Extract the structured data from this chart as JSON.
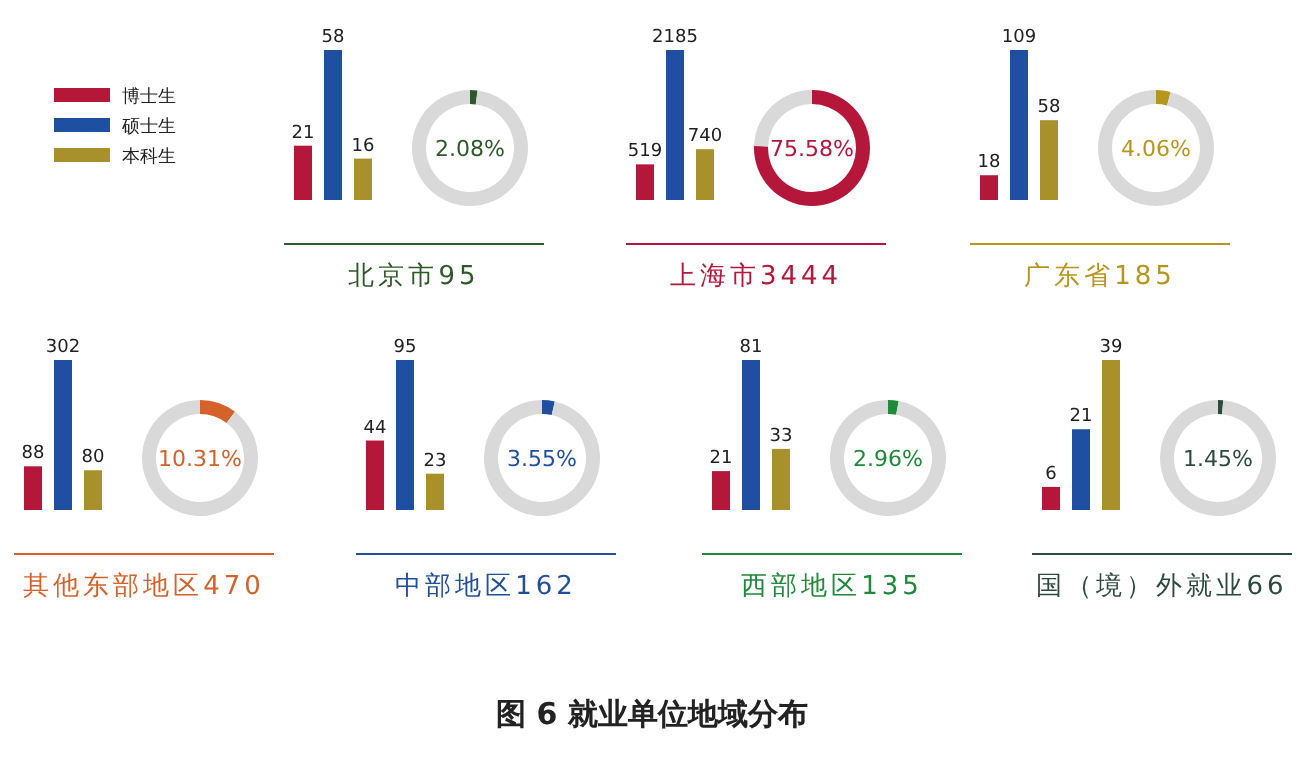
{
  "chart_data": [
    {
      "type": "other",
      "categories": [
        "博士生",
        "硕士生",
        "本科生"
      ],
      "colors": [
        "#b5173a",
        "#1f4fa0",
        "#a8902a"
      ]
    },
    {
      "type": "bar",
      "categories": [
        null,
        null,
        null
      ],
      "xlabel": "北京市95",
      "data_labels": true,
      "values": [
        21,
        58,
        16
      ],
      "colors": [
        "#b5173a",
        "#1f4fa0",
        "#a8902a"
      ]
    },
    {
      "type": "donut",
      "categories": [
        null,
        null
      ],
      "values": [
        2.08,
        97.92
      ],
      "colors": [
        "#2e5a2a",
        "#d9d9d9"
      ],
      "annotations": [
        "2.08%"
      ]
    },
    {
      "type": "bar",
      "categories": [
        null,
        null,
        null
      ],
      "xlabel": "上海市3444",
      "data_labels": true,
      "values": [
        519,
        2185,
        740
      ],
      "colors": [
        "#b5173a",
        "#1f4fa0",
        "#a8902a"
      ]
    },
    {
      "type": "donut",
      "categories": [
        null,
        null
      ],
      "values": [
        75.58,
        24.42
      ],
      "colors": [
        "#b5173a",
        "#d9d9d9"
      ],
      "annotations": [
        "75.58%"
      ]
    },
    {
      "type": "bar",
      "categories": [
        null,
        null,
        null
      ],
      "xlabel": "广东省185",
      "data_labels": true,
      "values": [
        18,
        109,
        58
      ],
      "colors": [
        "#b5173a",
        "#1f4fa0",
        "#a8902a"
      ]
    },
    {
      "type": "donut",
      "categories": [
        null,
        null
      ],
      "values": [
        4.06,
        95.94
      ],
      "colors": [
        "#b8961e",
        "#d9d9d9"
      ],
      "annotations": [
        "4.06%"
      ]
    },
    {
      "type": "bar",
      "categories": [
        null,
        null,
        null
      ],
      "xlabel": "其他东部地区470",
      "data_labels": true,
      "values": [
        88,
        302,
        80
      ],
      "colors": [
        "#b5173a",
        "#1f4fa0",
        "#a8902a"
      ]
    },
    {
      "type": "donut",
      "categories": [
        null,
        null
      ],
      "values": [
        10.31,
        89.69
      ],
      "colors": [
        "#d4622a",
        "#d9d9d9"
      ],
      "annotations": [
        "10.31%"
      ]
    },
    {
      "type": "bar",
      "categories": [
        null,
        null,
        null
      ],
      "xlabel": "中部地区162",
      "data_labels": true,
      "values": [
        44,
        95,
        23
      ],
      "colors": [
        "#b5173a",
        "#1f4fa0",
        "#a8902a"
      ]
    },
    {
      "type": "donut",
      "categories": [
        null,
        null
      ],
      "values": [
        3.55,
        96.45
      ],
      "colors": [
        "#1f4f9e",
        "#d9d9d9"
      ],
      "annotations": [
        "3.55%"
      ]
    },
    {
      "type": "bar",
      "categories": [
        null,
        null,
        null
      ],
      "xlabel": "西部地区135",
      "data_labels": true,
      "values": [
        21,
        81,
        33
      ],
      "colors": [
        "#b5173a",
        "#1f4fa0",
        "#a8902a"
      ]
    },
    {
      "type": "donut",
      "categories": [
        null,
        null
      ],
      "values": [
        2.96,
        97.04
      ],
      "colors": [
        "#1e8a3a",
        "#d9d9d9"
      ],
      "annotations": [
        "2.96%"
      ]
    },
    {
      "type": "bar",
      "categories": [
        null,
        null,
        null
      ],
      "xlabel": "国（境）外就业66",
      "data_labels": true,
      "values": [
        6,
        21,
        39
      ],
      "colors": [
        "#b5173a",
        "#1f4fa0",
        "#a8902a"
      ]
    },
    {
      "type": "donut",
      "categories": [
        null,
        null
      ],
      "values": [
        1.45,
        98.55
      ],
      "colors": [
        "#2d4a3e",
        "#d9d9d9"
      ],
      "annotations": [
        "1.45%"
      ]
    },
    {
      "type": "other",
      "title": "图 6  就业单位地域分布"
    }
  ]
}
